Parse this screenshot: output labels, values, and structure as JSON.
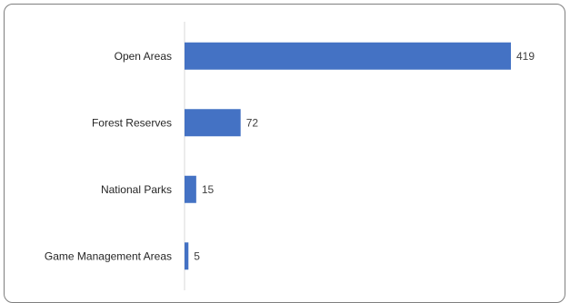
{
  "chart_data": {
    "type": "bar",
    "orientation": "horizontal",
    "categories": [
      "Open Areas",
      "Forest Reserves",
      "National Parks",
      "Game Management Areas"
    ],
    "values": [
      419,
      72,
      15,
      5
    ],
    "title": "",
    "xlabel": "",
    "ylabel": "",
    "data_labels": true,
    "grid": false,
    "legend": "none",
    "colors": {
      "bar": "#4472c4",
      "axis": "#d9d9d9",
      "text": "#262626"
    }
  }
}
